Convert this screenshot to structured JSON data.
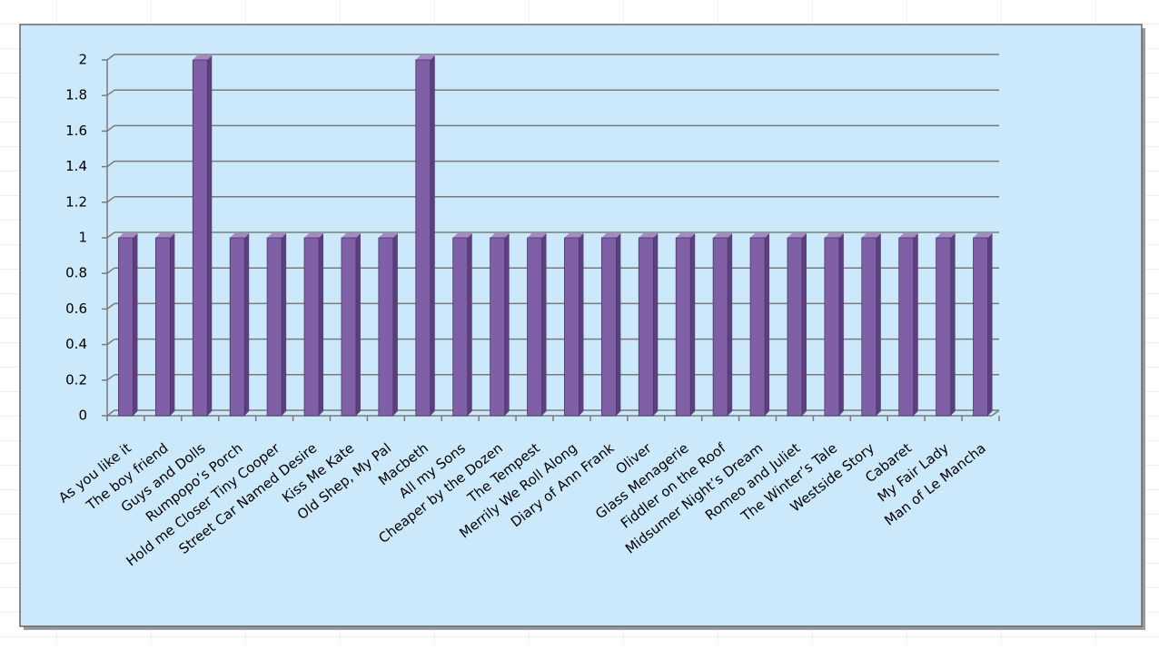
{
  "chart_data": {
    "type": "bar",
    "categories": [
      "As you like it",
      "The boy friend",
      "Guys and Dolls",
      "Rumpopo’s Porch",
      "Hold me Closer Tiny Cooper",
      "Street Car Named Desire",
      "Kiss Me Kate",
      "Old Shep, My Pal",
      "Macbeth",
      "All my Sons",
      "Cheaper by the Dozen",
      "The Tempest",
      "Merrily We Roll Along",
      "Diary of Ann Frank",
      "Oliver",
      "Glass Menagerie",
      "Fiddler on the Roof",
      "Midsumer Night’s Dream",
      "Romeo and Juliet",
      "The Winter’s Tale",
      "Westside Story",
      "Cabaret",
      "My Fair Lady",
      "Man of Le Mancha"
    ],
    "values": [
      1,
      1,
      2,
      1,
      1,
      1,
      1,
      1,
      2,
      1,
      1,
      1,
      1,
      1,
      1,
      1,
      1,
      1,
      1,
      1,
      1,
      1,
      1,
      1
    ],
    "color": "#7f5fa5",
    "ylim": [
      0,
      2
    ],
    "yticks": [
      0,
      0.2,
      0.4,
      0.6,
      0.8,
      1,
      1.2,
      1.4,
      1.6,
      1.8,
      2
    ],
    "grid": true
  }
}
